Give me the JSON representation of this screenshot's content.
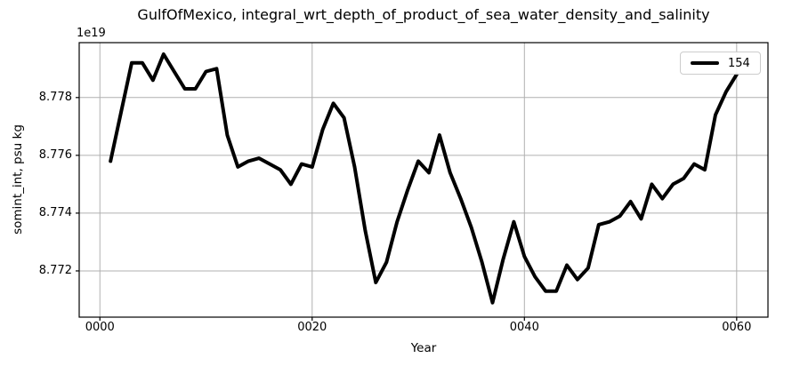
{
  "chart_data": {
    "type": "line",
    "title": "GulfOfMexico, integral_wrt_depth_of_product_of_sea_water_density_and_salinity",
    "xlabel": "Year",
    "ylabel": "somint_int, psu kg",
    "offset_text": "1e19",
    "grid": true,
    "grid_color": "#b0b0b0",
    "frame_color": "#000000",
    "xlim": [
      -1.95,
      62.95
    ],
    "ylim": [
      8.7704,
      8.7799
    ],
    "x_ticks": [
      {
        "value": 0,
        "label": "0000"
      },
      {
        "value": 20,
        "label": "0020"
      },
      {
        "value": 40,
        "label": "0040"
      },
      {
        "value": 60,
        "label": "0060"
      }
    ],
    "y_ticks": [
      {
        "value": 8.772,
        "label": "8.772"
      },
      {
        "value": 8.774,
        "label": "8.774"
      },
      {
        "value": 8.776,
        "label": "8.776"
      },
      {
        "value": 8.778,
        "label": "8.778"
      }
    ],
    "legend": {
      "position": "upper right",
      "entries": [
        {
          "label": "154",
          "color": "#000000",
          "linewidth": 4
        }
      ]
    },
    "series": [
      {
        "name": "154",
        "color": "#000000",
        "linewidth": 4,
        "x": [
          1,
          2,
          3,
          4,
          5,
          6,
          7,
          8,
          9,
          10,
          11,
          12,
          13,
          14,
          15,
          16,
          17,
          18,
          19,
          20,
          21,
          22,
          23,
          24,
          25,
          26,
          27,
          28,
          29,
          30,
          31,
          32,
          33,
          34,
          35,
          36,
          37,
          38,
          39,
          40,
          41,
          42,
          43,
          44,
          45,
          46,
          47,
          48,
          49,
          50,
          51,
          52,
          53,
          54,
          55,
          56,
          57,
          58,
          59,
          60
        ],
        "y": [
          8.7758,
          8.7775,
          8.7792,
          8.7792,
          8.7786,
          8.7795,
          8.7789,
          8.7783,
          8.7783,
          8.7789,
          8.779,
          8.7767,
          8.7756,
          8.7758,
          8.7759,
          8.7757,
          8.7755,
          8.775,
          8.7757,
          8.7756,
          8.7769,
          8.7778,
          8.7773,
          8.7756,
          8.7734,
          8.7716,
          8.7723,
          8.7737,
          8.7748,
          8.7758,
          8.7754,
          8.7767,
          8.7754,
          8.7745,
          8.7735,
          8.7723,
          8.7709,
          8.7724,
          8.7737,
          8.7725,
          8.7718,
          8.7713,
          8.7713,
          8.7722,
          8.7717,
          8.7721,
          8.7736,
          8.7737,
          8.7739,
          8.7744,
          8.7738,
          8.775,
          8.7745,
          8.775,
          8.7752,
          8.7757,
          8.7755,
          8.7774,
          8.7782,
          8.7788
        ]
      }
    ]
  }
}
